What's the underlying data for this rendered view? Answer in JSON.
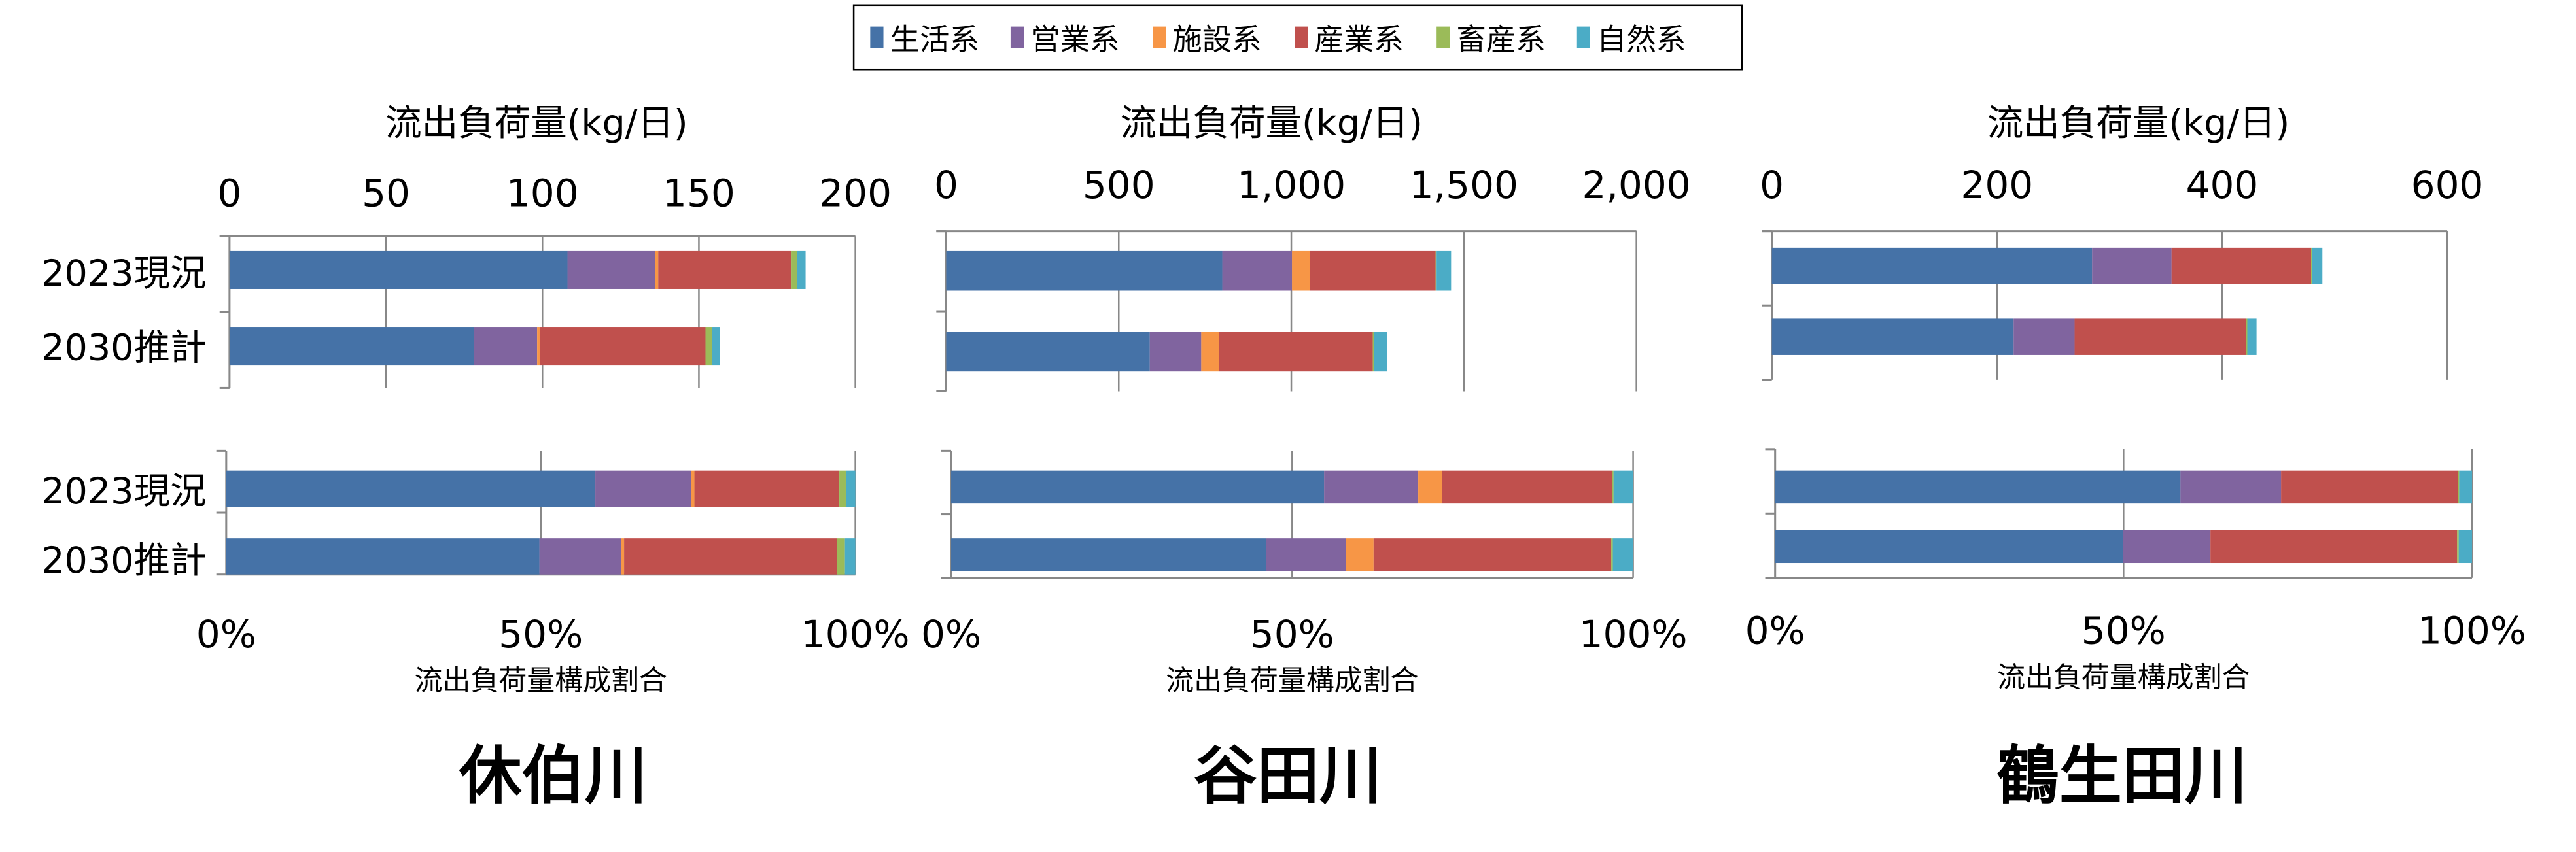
{
  "legend": {
    "items": [
      {
        "label": "生活系",
        "color": "#4572a7"
      },
      {
        "label": "営業系",
        "color": "#80649f"
      },
      {
        "label": "施設系",
        "color": "#f79646"
      },
      {
        "label": "産業系",
        "color": "#c0504d"
      },
      {
        "label": "畜産系",
        "color": "#9bbb59"
      },
      {
        "label": "自然系",
        "color": "#4bacc6"
      }
    ]
  },
  "chart_data": [
    {
      "type": "bar",
      "orientation": "horizontal-stacked",
      "river": "休伯川",
      "categories": [
        "2023現況",
        "2030推計"
      ],
      "show_category_labels": true,
      "load_axis": {
        "title": "流出負荷量(kg/日)",
        "ticks": [
          "0",
          "50",
          "100",
          "150",
          "200"
        ],
        "xlim": [
          0,
          200
        ]
      },
      "share_axis": {
        "title": "流出負荷量構成割合",
        "ticks": [
          "0%",
          "50%",
          "100%"
        ],
        "xlim": [
          0,
          100
        ]
      },
      "series": [
        {
          "name": "生活系",
          "values": [
            108,
            78
          ]
        },
        {
          "name": "営業系",
          "values": [
            28,
            20.3
          ]
        },
        {
          "name": "施設系",
          "values": [
            1,
            0.8
          ]
        },
        {
          "name": "産業系",
          "values": [
            42.4,
            53
          ]
        },
        {
          "name": "畜産系",
          "values": [
            1.9,
            2
          ]
        },
        {
          "name": "自然系",
          "values": [
            2.8,
            2.6
          ]
        }
      ],
      "grid": true
    },
    {
      "type": "bar",
      "orientation": "horizontal-stacked",
      "river": "谷田川",
      "categories": [
        "2023現況",
        "2030推計"
      ],
      "show_category_labels": false,
      "load_axis": {
        "title": "流出負荷量(kg/日)",
        "ticks": [
          "0",
          "500",
          "1,000",
          "1,500",
          "2,000"
        ],
        "xlim": [
          0,
          2000
        ]
      },
      "share_axis": {
        "title": "流出負荷量構成割合",
        "ticks": [
          "0%",
          "50%",
          "100%"
        ],
        "xlim": [
          0,
          100
        ]
      },
      "series": [
        {
          "name": "生活系",
          "values": [
            800,
            590
          ]
        },
        {
          "name": "営業系",
          "values": [
            202,
            149
          ]
        },
        {
          "name": "施設系",
          "values": [
            51,
            52
          ]
        },
        {
          "name": "産業系",
          "values": [
            365,
            445
          ]
        },
        {
          "name": "畜産系",
          "values": [
            3,
            3
          ]
        },
        {
          "name": "自然系",
          "values": [
            42,
            38
          ]
        }
      ],
      "grid": true
    },
    {
      "type": "bar",
      "orientation": "horizontal-stacked",
      "river": "鶴生田川",
      "categories": [
        "2023現況",
        "2030推計"
      ],
      "show_category_labels": false,
      "load_axis": {
        "title": "流出負荷量(kg/日)",
        "ticks": [
          "0",
          "200",
          "400",
          "600"
        ],
        "xlim": [
          0,
          600
        ]
      },
      "share_axis": {
        "title": "流出負荷量構成割合",
        "ticks": [
          "0%",
          "50%",
          "100%"
        ],
        "xlim": [
          0,
          100
        ]
      },
      "series": [
        {
          "name": "生活系",
          "values": [
            284.5,
            214.8
          ]
        },
        {
          "name": "営業系",
          "values": [
            70.6,
            54.2
          ]
        },
        {
          "name": "施設系",
          "values": [
            0,
            0
          ]
        },
        {
          "name": "産業系",
          "values": [
            124,
            152.4
          ]
        },
        {
          "name": "畜産系",
          "values": [
            1,
            1
          ]
        },
        {
          "name": "自然系",
          "values": [
            9,
            8.2
          ]
        }
      ],
      "grid": true
    }
  ]
}
